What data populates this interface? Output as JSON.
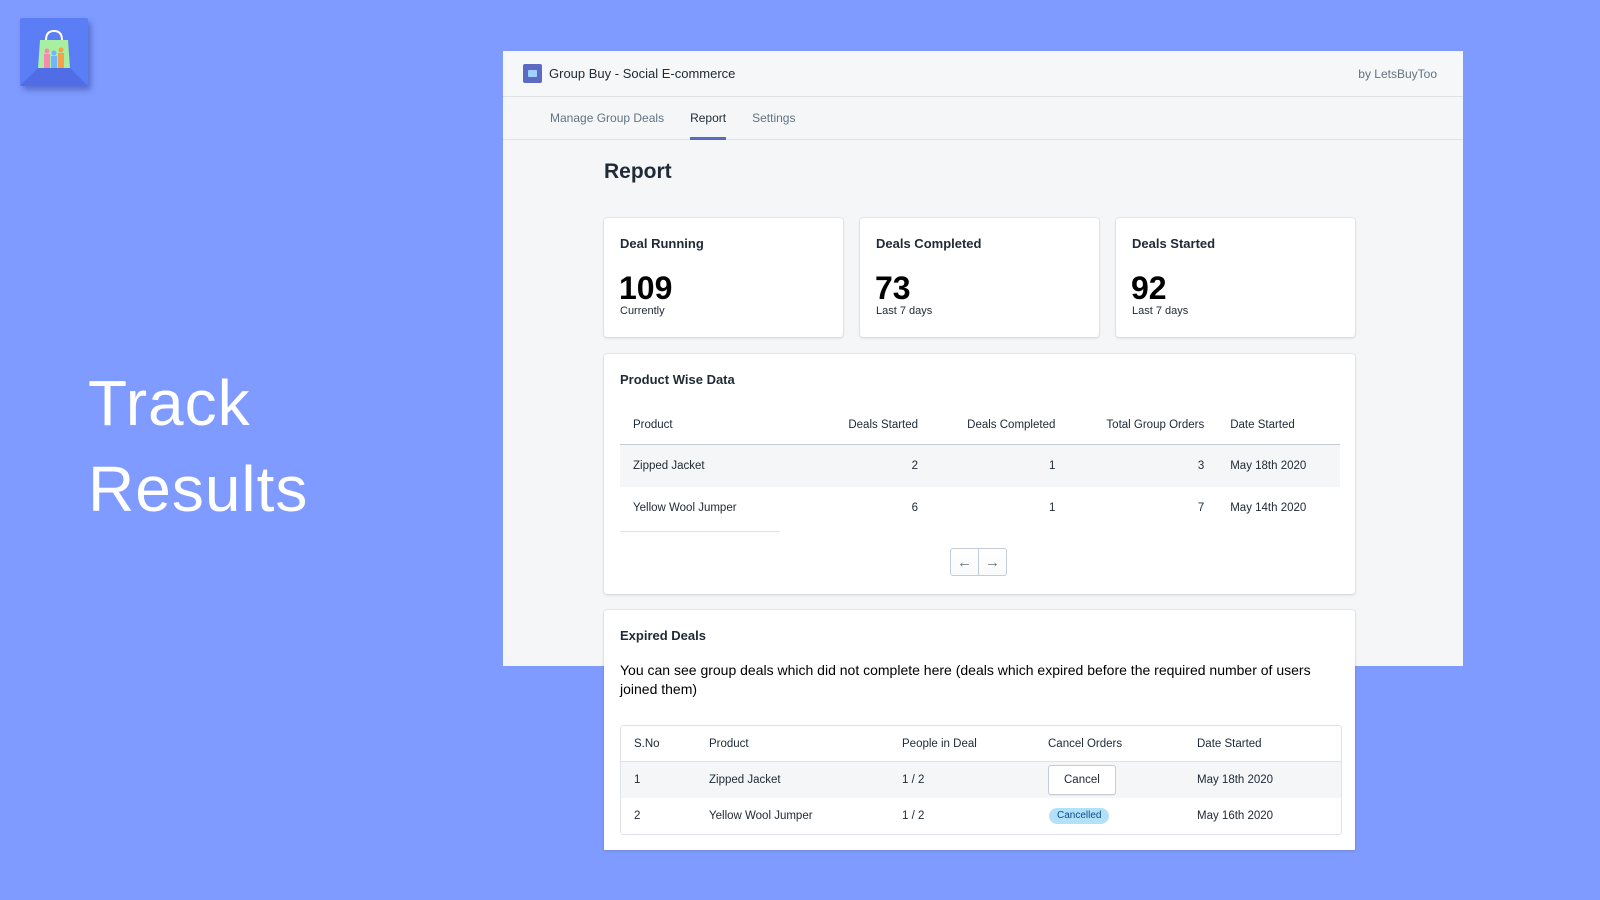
{
  "colors": {
    "background": "#7f9bff",
    "accent": "#5c6ac4",
    "badge_bg": "#b4e1fa"
  },
  "logo": {
    "icon": "shopping-bag-icon"
  },
  "tagline": {
    "line1": "Track",
    "line2": "Results"
  },
  "app": {
    "title": "Group Buy - Social E-commerce",
    "byline": "by LetsBuyToo",
    "tabs": [
      {
        "label": "Manage Group Deals",
        "active": false
      },
      {
        "label": "Report",
        "active": true
      },
      {
        "label": "Settings",
        "active": false
      }
    ]
  },
  "report": {
    "title": "Report",
    "stats": [
      {
        "label": "Deal Running",
        "value": "109",
        "sub": "Currently"
      },
      {
        "label": "Deals Completed",
        "value": "73",
        "sub": "Last 7 days"
      },
      {
        "label": "Deals Started",
        "value": "92",
        "sub": "Last 7 days"
      }
    ]
  },
  "product_wise": {
    "title": "Product Wise Data",
    "columns": [
      "Product",
      "Deals Started",
      "Deals Completed",
      "Total Group Orders",
      "Date Started"
    ],
    "rows": [
      {
        "product": "Zipped Jacket",
        "deals_started": "2",
        "deals_completed": "1",
        "total_orders": "3",
        "date_started": "May 18th 2020"
      },
      {
        "product": "Yellow Wool Jumper",
        "deals_started": "6",
        "deals_completed": "1",
        "total_orders": "7",
        "date_started": "May 14th 2020"
      }
    ],
    "pager": {
      "prev": "←",
      "next": "→"
    }
  },
  "expired": {
    "title": "Expired Deals",
    "description": "You can see group deals which did not complete here (deals which expired before the required number of users joined them)",
    "columns": [
      "S.No",
      "Product",
      "People in Deal",
      "Cancel Orders",
      "Date Started"
    ],
    "rows": [
      {
        "sno": "1",
        "product": "Zipped Jacket",
        "people": "1 / 2",
        "action": "Cancel",
        "date_started": "May 18th 2020"
      },
      {
        "sno": "2",
        "product": "Yellow Wool Jumper",
        "people": "1 / 2",
        "status": "Cancelled",
        "date_started": "May 16th 2020"
      }
    ]
  }
}
